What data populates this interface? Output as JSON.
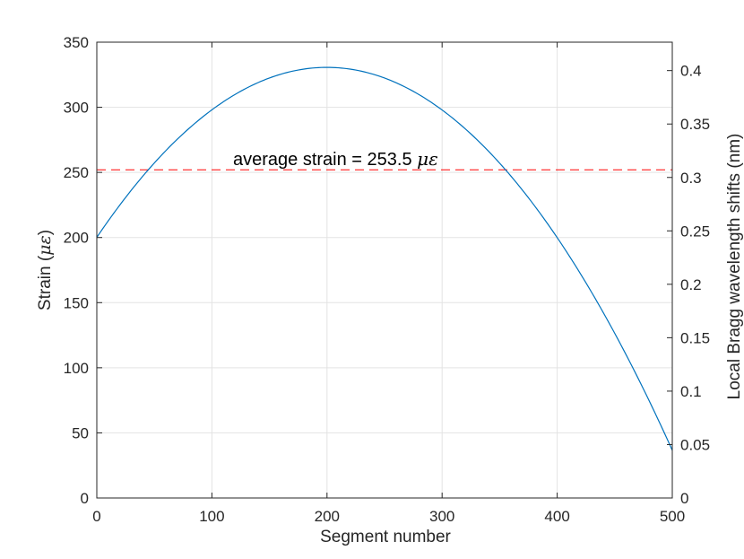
{
  "chart_data": {
    "type": "line",
    "title": "",
    "xlabel": "Segment number",
    "ylabel": {
      "text": "Strain (",
      "symbol": "με",
      "close": ")"
    },
    "y2label": "Local Bragg wavelength shifts (nm)",
    "xlim": [
      0,
      500
    ],
    "ylim": [
      0,
      350
    ],
    "y2lim": [
      0,
      0.4266
    ],
    "x_ticks": [
      0,
      100,
      200,
      300,
      400,
      500
    ],
    "y_ticks": [
      0,
      50,
      100,
      150,
      200,
      250,
      300,
      350
    ],
    "y2_ticks": [
      0,
      0.05,
      0.1,
      0.15,
      0.2,
      0.25,
      0.3,
      0.35,
      0.4
    ],
    "grid": true,
    "series": [
      {
        "color": "#0072BD",
        "style": "solid",
        "x": [
          0,
          50,
          100,
          150,
          200,
          250,
          300,
          350,
          400,
          450,
          500
        ],
        "y": [
          200,
          258.5,
          297.5,
          322,
          330,
          322,
          297.5,
          258.5,
          200,
          128,
          35
        ]
      }
    ],
    "reference_line": {
      "y": 252,
      "color": "#FF0000",
      "style": "dashed"
    },
    "annotation": {
      "text": "average strain = 253.5 ",
      "symbol": "με",
      "x": 119,
      "y": 253.5
    }
  }
}
